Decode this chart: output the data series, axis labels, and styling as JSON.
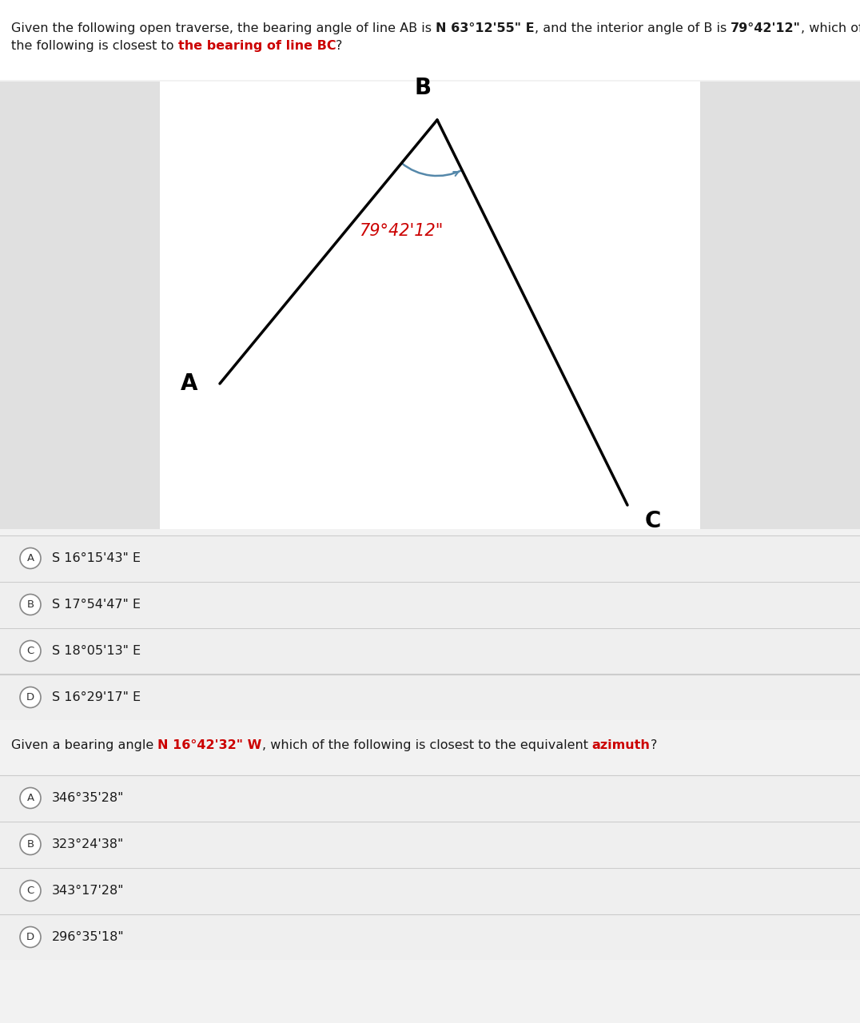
{
  "q1_line1_parts": [
    {
      "text": "Given the following open traverse, the bearing angle of line AB is ",
      "bold": false,
      "color": "#1a1a1a"
    },
    {
      "text": "N 63°12'55\" E",
      "bold": true,
      "color": "#1a1a1a"
    },
    {
      "text": ", and the interior angle of B is ",
      "bold": false,
      "color": "#1a1a1a"
    },
    {
      "text": "79°42'12\"",
      "bold": true,
      "color": "#1a1a1a"
    },
    {
      "text": ", which of",
      "bold": false,
      "color": "#1a1a1a"
    }
  ],
  "q1_line2_parts": [
    {
      "text": "the following is closest to ",
      "bold": false,
      "color": "#1a1a1a"
    },
    {
      "text": "the bearing of line BC",
      "bold": true,
      "color": "#cc0000"
    },
    {
      "text": "?",
      "bold": false,
      "color": "#1a1a1a"
    }
  ],
  "angle_label": "79°42'12\"",
  "angle_color": "#cc0000",
  "arc_color": "#5588aa",
  "line_color": "#000000",
  "label_color": "#000000",
  "q1_options": [
    {
      "letter": "A",
      "text": "S 16°15'43\" E"
    },
    {
      "letter": "B",
      "text": "S 17°54'47\" E"
    },
    {
      "letter": "C",
      "text": "S 18°05'13\" E"
    },
    {
      "letter": "D",
      "text": "S 16°29'17\" E"
    }
  ],
  "q2_parts": [
    {
      "text": "Given a bearing angle ",
      "bold": false,
      "color": "#1a1a1a"
    },
    {
      "text": "N 16°42'32\" W",
      "bold": true,
      "color": "#cc0000"
    },
    {
      "text": ", which of the following is closest to the equivalent ",
      "bold": false,
      "color": "#1a1a1a"
    },
    {
      "text": "azimuth",
      "bold": true,
      "color": "#cc0000"
    },
    {
      "text": "?",
      "bold": false,
      "color": "#1a1a1a"
    }
  ],
  "q2_options": [
    {
      "letter": "A",
      "text": "346°35'28\""
    },
    {
      "letter": "B",
      "text": "323°24'38\""
    },
    {
      "letter": "C",
      "text": "343°17'28\""
    },
    {
      "letter": "D",
      "text": "296°35'18\""
    }
  ],
  "bg_color": "#f2f2f2",
  "white": "#ffffff",
  "option_bg": "#efefef",
  "gray_panel": "#e0e0e0",
  "option_border": "#cccccc",
  "fontsize_question": 11.5,
  "fontsize_option": 11.5,
  "fontsize_label": 20
}
